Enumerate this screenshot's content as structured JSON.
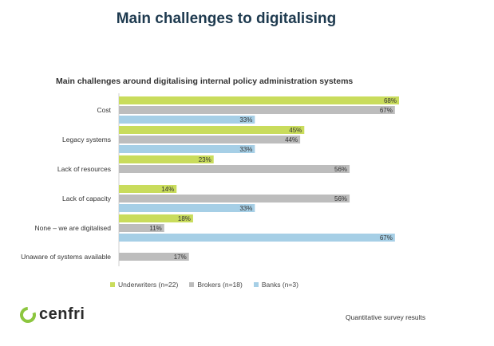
{
  "slide": {
    "title": "Main challenges to digitalising",
    "footnote": "Quantitative survey results",
    "logo_text": "cenfri"
  },
  "colors": {
    "underwriters": "#c9dc5c",
    "brokers": "#bdbdbd",
    "banks": "#a6cfe6"
  },
  "chart_data": {
    "type": "bar",
    "orientation": "horizontal",
    "title": "Main challenges around digitalising internal policy administration systems",
    "categories": [
      "Cost",
      "Legacy systems",
      "Lack of resources",
      "Lack of capacity",
      "None – we are digitalised",
      "Unaware of systems available"
    ],
    "series": [
      {
        "name": "Underwriters (n=22)",
        "key": "underwriters",
        "values": [
          68,
          45,
          23,
          14,
          18,
          null
        ]
      },
      {
        "name": "Brokers (n=18)",
        "key": "brokers",
        "values": [
          67,
          44,
          56,
          56,
          11,
          17
        ]
      },
      {
        "name": "Banks (n=3)",
        "key": "banks",
        "values": [
          33,
          33,
          null,
          33,
          67,
          null
        ]
      }
    ],
    "value_suffix": "%",
    "xlim": [
      0,
      100
    ],
    "legend": "bottom",
    "grid": false
  }
}
